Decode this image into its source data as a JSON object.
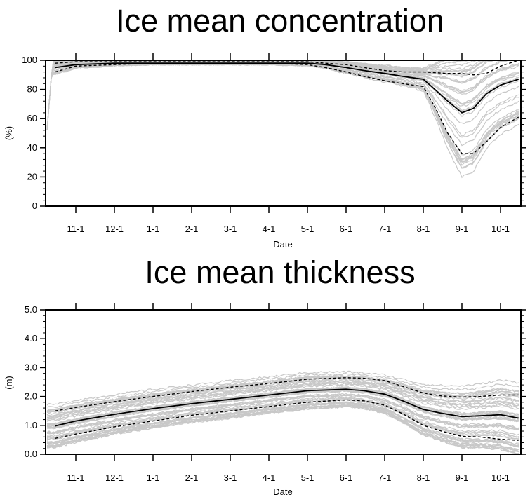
{
  "chart_data": [
    {
      "type": "line",
      "title": "Ice mean concentration",
      "xlabel": "Date",
      "ylabel": "(%)",
      "ylim": [
        0,
        100
      ],
      "yticks": [
        "0",
        "20",
        "40",
        "60",
        "80",
        "100"
      ],
      "x_tick_labels": [
        "11-1",
        "12-1",
        "1-1",
        "2-1",
        "3-1",
        "4-1",
        "5-1",
        "6-1",
        "7-1",
        "8-1",
        "9-1",
        "10-1"
      ],
      "ensemble_color": "#c8c8c8",
      "series": [
        {
          "style": "solid",
          "x": [
            "10-15",
            "11-1",
            "12-1",
            "1-1",
            "2-1",
            "3-1",
            "4-1",
            "5-1",
            "5-15",
            "6-1",
            "6-15",
            "7-1",
            "7-15",
            "8-1",
            "8-10",
            "8-20",
            "9-1",
            "9-10",
            "9-20",
            "10-1",
            "10-15"
          ],
          "values": [
            95,
            97,
            98,
            98,
            98,
            98,
            98,
            98,
            97,
            95,
            93,
            91,
            89,
            87,
            80,
            72,
            64,
            67,
            77,
            83,
            87
          ]
        },
        {
          "style": "dashed",
          "x": [
            "10-15",
            "11-1",
            "12-1",
            "1-1",
            "2-1",
            "3-1",
            "4-1",
            "5-1",
            "5-15",
            "6-1",
            "6-15",
            "7-1",
            "7-15",
            "8-1",
            "8-10",
            "8-20",
            "9-1",
            "9-10",
            "9-20",
            "10-1",
            "10-15"
          ],
          "values": [
            92,
            96,
            97,
            98,
            98,
            98,
            98,
            97,
            95,
            92,
            89,
            86,
            84,
            82,
            68,
            50,
            36,
            36,
            44,
            54,
            61
          ]
        },
        {
          "style": "dashed",
          "x": [
            "10-15",
            "11-1",
            "12-1",
            "1-1",
            "2-1",
            "3-1",
            "4-1",
            "5-1",
            "5-15",
            "6-1",
            "6-15",
            "7-1",
            "7-15",
            "8-1",
            "8-20",
            "9-1",
            "9-10",
            "9-20",
            "10-1",
            "10-15"
          ],
          "values": [
            98,
            99,
            99,
            99,
            99,
            99,
            99,
            99,
            98,
            97,
            95,
            93,
            92,
            92,
            91,
            91,
            90,
            91,
            96,
            100
          ]
        }
      ]
    },
    {
      "type": "line",
      "title": "Ice mean thickness",
      "xlabel": "Date",
      "ylabel": "(m)",
      "ylim": [
        0,
        5
      ],
      "yticks": [
        "0.0",
        "1.0",
        "2.0",
        "3.0",
        "4.0",
        "5.0"
      ],
      "x_tick_labels": [
        "11-1",
        "12-1",
        "1-1",
        "2-1",
        "3-1",
        "4-1",
        "5-1",
        "6-1",
        "7-1",
        "8-1",
        "9-1",
        "10-1"
      ],
      "ensemble_color": "#c8c8c8",
      "series": [
        {
          "style": "solid",
          "x": [
            "10-15",
            "11-1",
            "12-1",
            "1-1",
            "2-1",
            "3-1",
            "4-1",
            "5-1",
            "6-1",
            "6-15",
            "7-1",
            "7-15",
            "8-1",
            "8-15",
            "9-1",
            "9-15",
            "10-1",
            "10-15"
          ],
          "values": [
            0.98,
            1.15,
            1.38,
            1.58,
            1.75,
            1.9,
            2.05,
            2.2,
            2.25,
            2.2,
            2.08,
            1.85,
            1.55,
            1.42,
            1.3,
            1.33,
            1.37,
            1.25
          ]
        },
        {
          "style": "dashed",
          "x": [
            "10-15",
            "11-1",
            "12-1",
            "1-1",
            "2-1",
            "3-1",
            "4-1",
            "5-1",
            "6-1",
            "6-15",
            "7-1",
            "7-15",
            "8-1",
            "8-15",
            "9-1",
            "9-15",
            "10-1",
            "10-15"
          ],
          "values": [
            1.5,
            1.62,
            1.82,
            2.0,
            2.17,
            2.32,
            2.45,
            2.6,
            2.65,
            2.63,
            2.55,
            2.35,
            2.12,
            2.02,
            1.98,
            2.0,
            2.05,
            2.05
          ]
        },
        {
          "style": "dashed",
          "x": [
            "10-15",
            "11-1",
            "12-1",
            "1-1",
            "2-1",
            "3-1",
            "4-1",
            "5-1",
            "6-1",
            "6-15",
            "7-1",
            "7-15",
            "8-1",
            "8-15",
            "9-1",
            "9-15",
            "10-1",
            "10-15"
          ],
          "values": [
            0.55,
            0.7,
            0.95,
            1.15,
            1.35,
            1.5,
            1.65,
            1.8,
            1.88,
            1.85,
            1.7,
            1.4,
            1.0,
            0.8,
            0.62,
            0.6,
            0.52,
            0.48
          ]
        }
      ]
    }
  ]
}
